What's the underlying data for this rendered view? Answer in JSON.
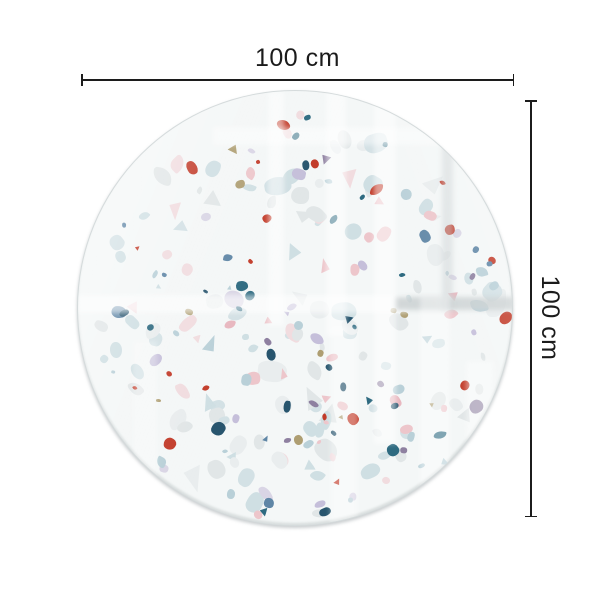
{
  "dimensions": {
    "width_label": "100 cm",
    "height_label": "100 cm",
    "line_color": "#1c1c1c",
    "label_color": "#1b1b1b"
  },
  "board": {
    "shape": "circle",
    "base_color": "#f4f7f7",
    "edge_color": "#afb8bb"
  },
  "terrazzo_palette": {
    "light": [
      {
        "hex": "#e1e6e7",
        "weight": 3
      },
      {
        "hex": "#d3e1e5",
        "weight": 2
      },
      {
        "hex": "#cfdfe3",
        "weight": 2
      },
      {
        "hex": "#f1dcdf",
        "weight": 2
      },
      {
        "hex": "#d9d5e5",
        "weight": 1
      },
      {
        "hex": "#e9edee",
        "weight": 2
      }
    ],
    "bold": [
      {
        "hex": "#2e6a80",
        "weight": 2
      },
      {
        "hex": "#c23b29",
        "weight": 2
      },
      {
        "hex": "#ae9e72",
        "weight": 1
      },
      {
        "hex": "#8e80a0",
        "weight": 1
      },
      {
        "hex": "#b9d0d8",
        "weight": 2
      },
      {
        "hex": "#edc6cb",
        "weight": 2
      },
      {
        "hex": "#c5bfda",
        "weight": 1
      },
      {
        "hex": "#e8b7bf",
        "weight": 1
      },
      {
        "hex": "#5f86a6",
        "weight": 1
      },
      {
        "hex": "#28556e",
        "weight": 1
      }
    ]
  },
  "reflection_colors": {
    "white": "255,255,255",
    "gray": "200,206,208"
  }
}
